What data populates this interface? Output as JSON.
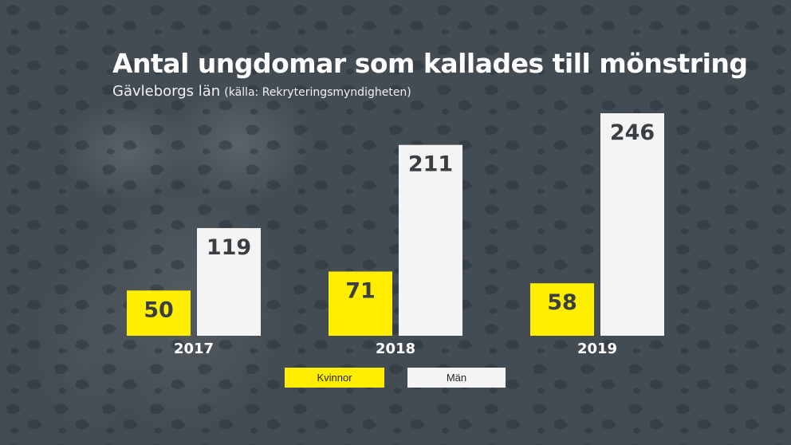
{
  "header": {
    "title": "Antal ungdomar som kallades till mönstring",
    "region": "Gävleborgs län",
    "source": "(källa: Rekryteringsmyndigheten)"
  },
  "colors": {
    "kvinnor": "#ffee00",
    "man": "#f4f4f4",
    "value_text": "#3a3f44",
    "year_text": "#ffffff"
  },
  "chart_data": {
    "type": "bar",
    "title": "Antal ungdomar som kallades till mönstring",
    "subtitle": "Gävleborgs län (källa: Rekryteringsmyndigheten)",
    "categories": [
      "2017",
      "2018",
      "2019"
    ],
    "series": [
      {
        "name": "Kvinnor",
        "values": [
          50,
          71,
          58
        ]
      },
      {
        "name": "Män",
        "values": [
          119,
          211,
          246
        ]
      }
    ],
    "xlabel": "",
    "ylabel": "",
    "ylim": [
      0,
      246
    ],
    "grid": false,
    "legend": "bottom-center"
  },
  "legend": {
    "kvinnor_label": "Kvinnor",
    "man_label": "Män"
  }
}
